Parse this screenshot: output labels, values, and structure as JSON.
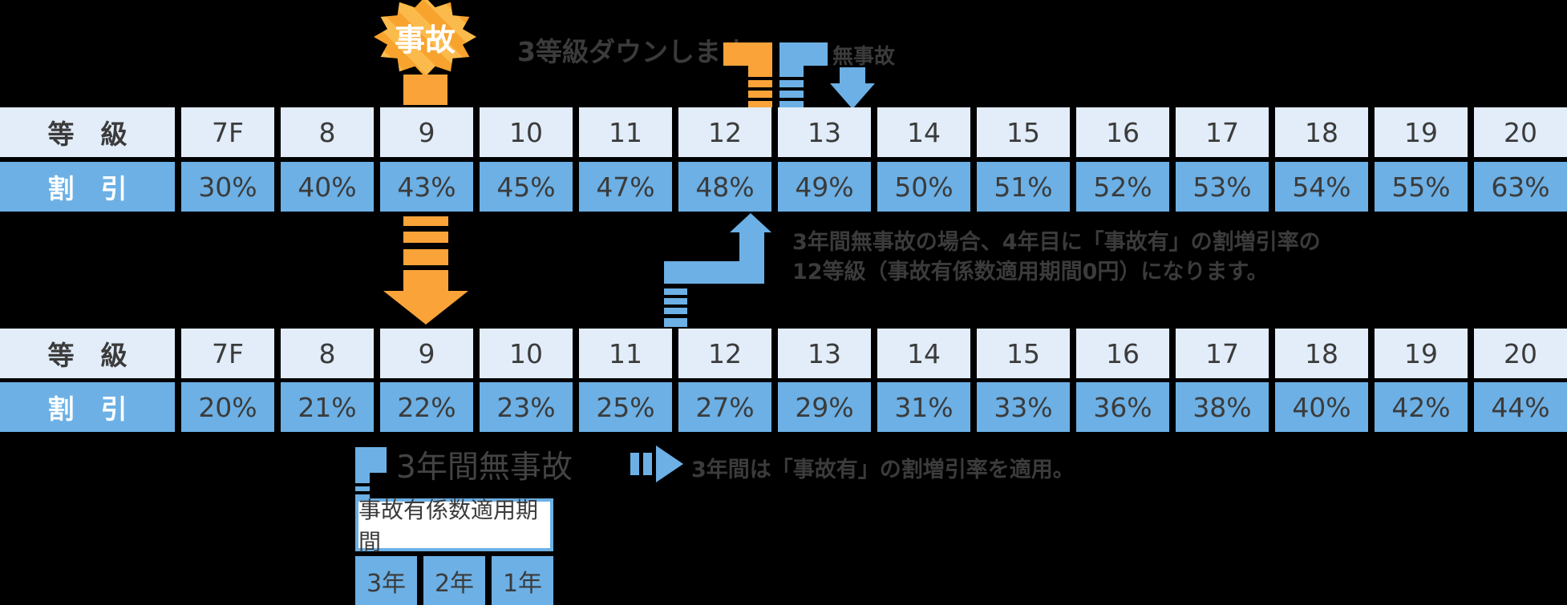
{
  "colors": {
    "blue": "#6cb0e5",
    "light_blue": "#e2edf9",
    "orange": "#f9a338",
    "text": "#3b3b3b"
  },
  "top": {
    "burst_label": "事故",
    "down_note": "3等級ダウンします",
    "no_accident_label": "無事故"
  },
  "table_top": {
    "grade_label": "等　級",
    "discount_label": "割　引",
    "grades": [
      "7F",
      "8",
      "9",
      "10",
      "11",
      "12",
      "13",
      "14",
      "15",
      "16",
      "17",
      "18",
      "19",
      "20"
    ],
    "discounts": [
      "30%",
      "40%",
      "43%",
      "45%",
      "47%",
      "48%",
      "49%",
      "50%",
      "51%",
      "52%",
      "53%",
      "54%",
      "55%",
      "63%"
    ]
  },
  "note": {
    "line1": "3年間無事故の場合、4年目に「事故有」の割増引率の",
    "line2": "12等級（事故有係数適用期間0円）になります。"
  },
  "table_bottom": {
    "grade_label": "等　級",
    "discount_label": "割　引",
    "grades": [
      "7F",
      "8",
      "9",
      "10",
      "11",
      "12",
      "13",
      "14",
      "15",
      "16",
      "17",
      "18",
      "19",
      "20"
    ],
    "discounts": [
      "20%",
      "21%",
      "22%",
      "23%",
      "25%",
      "27%",
      "29%",
      "31%",
      "33%",
      "36%",
      "38%",
      "40%",
      "42%",
      "44%"
    ]
  },
  "bottom": {
    "three_years_label": "3年間無事故",
    "apply_note": "3年間は「事故有」の割増引率を適用。",
    "period_title": "事故有係数適用期間",
    "period_years": [
      "3年",
      "2年",
      "1年"
    ]
  }
}
